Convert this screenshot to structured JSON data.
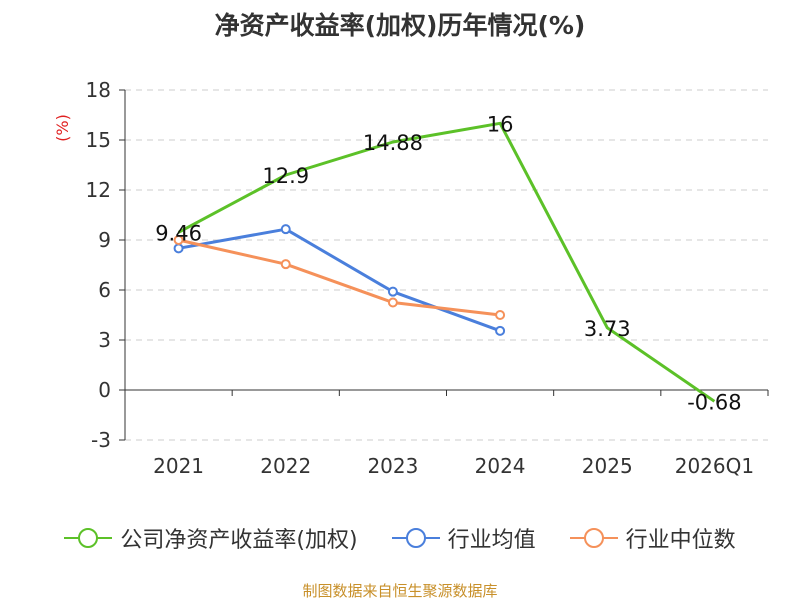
{
  "chart_data": {
    "type": "line",
    "title": "净资产收益率(加权)历年情况(%)",
    "ylabel": "(%)",
    "xlabel": "",
    "categories": [
      "2021",
      "2022",
      "2023",
      "2024",
      "2025",
      "2026Q1"
    ],
    "ylim": [
      -3,
      18
    ],
    "yticks": [
      -3,
      0,
      3,
      6,
      9,
      12,
      15,
      18
    ],
    "grid": true,
    "legend_position": "bottom",
    "series": [
      {
        "name": "公司净资产收益率(加权)",
        "color": "#5cc128",
        "values": [
          9.46,
          12.9,
          14.88,
          16,
          3.73,
          -0.68
        ],
        "labels": [
          "9.46",
          "12.9",
          "14.88",
          "16",
          "3.73",
          "-0.68"
        ],
        "show_labels": true
      },
      {
        "name": "行业均值",
        "color": "#4a7fdc",
        "values": [
          8.5,
          9.65,
          5.9,
          3.55,
          null,
          null
        ],
        "show_labels": false
      },
      {
        "name": "行业中位数",
        "color": "#f5915a",
        "values": [
          9.0,
          7.55,
          5.25,
          4.5,
          null,
          null
        ],
        "show_labels": false
      }
    ]
  },
  "footer": "制图数据来自恒生聚源数据库"
}
